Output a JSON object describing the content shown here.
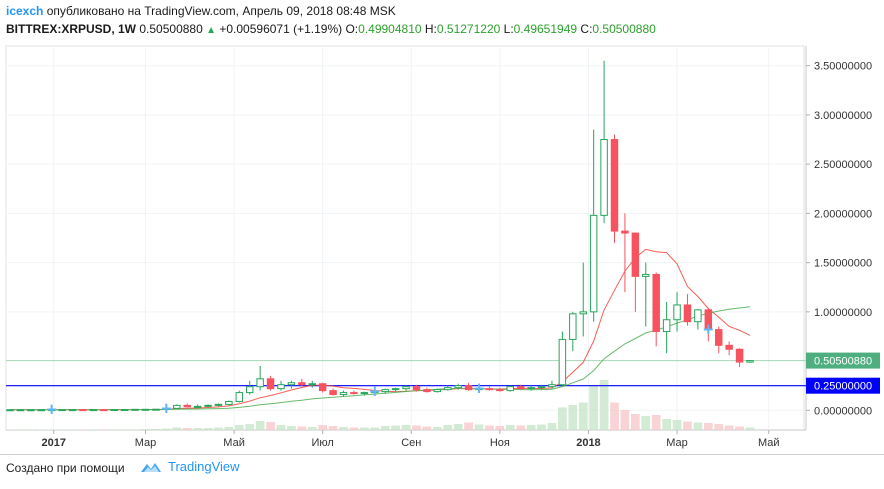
{
  "header": {
    "author": "icexch",
    "published_text": "опубликовано на TradingView.com, Апрель 09, 2018 08:48 MSK",
    "symbol": "BITTREX:XRPUSD, 1W",
    "price": "0.50500880",
    "change": "+0.00596071 (+1.19%)",
    "o_label": "O:",
    "o_value": "0.49904810",
    "h_label": "H:",
    "h_value": "0.51271220",
    "l_label": "L:",
    "l_value": "0.49651949",
    "c_label": "C:",
    "c_value": "0.50500880"
  },
  "footer": {
    "created_with": "Создано при помощи",
    "brand": "TradingView"
  },
  "colors": {
    "up": "#26a65b",
    "down": "#f7525f",
    "ma_fast": "#f44336",
    "ma_slow": "#4caf50",
    "vol_up": "#c8e6c9",
    "vol_down": "#f8c9cc",
    "axis_blue": "#0000ff",
    "price_label": "#4fae7f"
  },
  "chart_data": {
    "type": "candlestick",
    "xlabels": [
      "2017",
      "Мар",
      "Май",
      "Июл",
      "Сен",
      "Ноя",
      "2018",
      "Мар",
      "Май"
    ],
    "ylabels": [
      "3.50000000",
      "3.00000000",
      "2.50000000",
      "2.00000000",
      "1.50000000",
      "1.00000000",
      "0.00000000"
    ],
    "ylim": [
      -0.2,
      3.7
    ],
    "last_price_label": "0.50500880",
    "horizontal_line_label": "0.25000000",
    "horizontal_line_value": 0.25,
    "last_price_value": 0.505,
    "candles": [
      {
        "o": 0.006,
        "h": 0.007,
        "l": 0.005,
        "c": 0.006
      },
      {
        "o": 0.006,
        "h": 0.007,
        "l": 0.005,
        "c": 0.006
      },
      {
        "o": 0.006,
        "h": 0.007,
        "l": 0.005,
        "c": 0.006
      },
      {
        "o": 0.006,
        "h": 0.007,
        "l": 0.005,
        "c": 0.006
      },
      {
        "o": 0.006,
        "h": 0.008,
        "l": 0.005,
        "c": 0.007
      },
      {
        "o": 0.007,
        "h": 0.008,
        "l": 0.006,
        "c": 0.007
      },
      {
        "o": 0.007,
        "h": 0.008,
        "l": 0.006,
        "c": 0.007
      },
      {
        "o": 0.007,
        "h": 0.007,
        "l": 0.006,
        "c": 0.006
      },
      {
        "o": 0.006,
        "h": 0.007,
        "l": 0.006,
        "c": 0.007
      },
      {
        "o": 0.007,
        "h": 0.007,
        "l": 0.006,
        "c": 0.006
      },
      {
        "o": 0.006,
        "h": 0.008,
        "l": 0.006,
        "c": 0.008
      },
      {
        "o": 0.008,
        "h": 0.009,
        "l": 0.007,
        "c": 0.008
      },
      {
        "o": 0.008,
        "h": 0.01,
        "l": 0.007,
        "c": 0.01
      },
      {
        "o": 0.01,
        "h": 0.011,
        "l": 0.009,
        "c": 0.01
      },
      {
        "o": 0.01,
        "h": 0.012,
        "l": 0.009,
        "c": 0.011
      },
      {
        "o": 0.011,
        "h": 0.02,
        "l": 0.01,
        "c": 0.02
      },
      {
        "o": 0.02,
        "h": 0.06,
        "l": 0.02,
        "c": 0.05
      },
      {
        "o": 0.05,
        "h": 0.07,
        "l": 0.03,
        "c": 0.035
      },
      {
        "o": 0.035,
        "h": 0.06,
        "l": 0.03,
        "c": 0.04
      },
      {
        "o": 0.04,
        "h": 0.06,
        "l": 0.03,
        "c": 0.05
      },
      {
        "o": 0.05,
        "h": 0.07,
        "l": 0.04,
        "c": 0.06
      },
      {
        "o": 0.06,
        "h": 0.1,
        "l": 0.05,
        "c": 0.09
      },
      {
        "o": 0.09,
        "h": 0.2,
        "l": 0.08,
        "c": 0.18
      },
      {
        "o": 0.18,
        "h": 0.3,
        "l": 0.16,
        "c": 0.24
      },
      {
        "o": 0.24,
        "h": 0.45,
        "l": 0.2,
        "c": 0.32
      },
      {
        "o": 0.32,
        "h": 0.35,
        "l": 0.2,
        "c": 0.22
      },
      {
        "o": 0.22,
        "h": 0.3,
        "l": 0.2,
        "c": 0.26
      },
      {
        "o": 0.26,
        "h": 0.3,
        "l": 0.22,
        "c": 0.28
      },
      {
        "o": 0.28,
        "h": 0.32,
        "l": 0.24,
        "c": 0.26
      },
      {
        "o": 0.26,
        "h": 0.3,
        "l": 0.23,
        "c": 0.27
      },
      {
        "o": 0.27,
        "h": 0.28,
        "l": 0.18,
        "c": 0.2
      },
      {
        "o": 0.2,
        "h": 0.22,
        "l": 0.15,
        "c": 0.16
      },
      {
        "o": 0.16,
        "h": 0.2,
        "l": 0.14,
        "c": 0.18
      },
      {
        "o": 0.18,
        "h": 0.2,
        "l": 0.16,
        "c": 0.17
      },
      {
        "o": 0.17,
        "h": 0.19,
        "l": 0.15,
        "c": 0.18
      },
      {
        "o": 0.18,
        "h": 0.2,
        "l": 0.16,
        "c": 0.19
      },
      {
        "o": 0.19,
        "h": 0.22,
        "l": 0.17,
        "c": 0.21
      },
      {
        "o": 0.21,
        "h": 0.23,
        "l": 0.19,
        "c": 0.22
      },
      {
        "o": 0.22,
        "h": 0.25,
        "l": 0.2,
        "c": 0.24
      },
      {
        "o": 0.24,
        "h": 0.26,
        "l": 0.19,
        "c": 0.21
      },
      {
        "o": 0.21,
        "h": 0.23,
        "l": 0.18,
        "c": 0.19
      },
      {
        "o": 0.19,
        "h": 0.22,
        "l": 0.18,
        "c": 0.21
      },
      {
        "o": 0.21,
        "h": 0.25,
        "l": 0.2,
        "c": 0.23
      },
      {
        "o": 0.23,
        "h": 0.27,
        "l": 0.21,
        "c": 0.25
      },
      {
        "o": 0.25,
        "h": 0.28,
        "l": 0.2,
        "c": 0.21
      },
      {
        "o": 0.21,
        "h": 0.24,
        "l": 0.19,
        "c": 0.22
      },
      {
        "o": 0.22,
        "h": 0.24,
        "l": 0.2,
        "c": 0.21
      },
      {
        "o": 0.21,
        "h": 0.23,
        "l": 0.19,
        "c": 0.2
      },
      {
        "o": 0.2,
        "h": 0.25,
        "l": 0.19,
        "c": 0.24
      },
      {
        "o": 0.24,
        "h": 0.26,
        "l": 0.21,
        "c": 0.22
      },
      {
        "o": 0.22,
        "h": 0.25,
        "l": 0.2,
        "c": 0.23
      },
      {
        "o": 0.23,
        "h": 0.26,
        "l": 0.21,
        "c": 0.24
      },
      {
        "o": 0.24,
        "h": 0.3,
        "l": 0.22,
        "c": 0.26
      },
      {
        "o": 0.26,
        "h": 0.8,
        "l": 0.24,
        "c": 0.72
      },
      {
        "o": 0.72,
        "h": 1.0,
        "l": 0.6,
        "c": 0.98
      },
      {
        "o": 0.98,
        "h": 1.5,
        "l": 0.75,
        "c": 1.0
      },
      {
        "o": 1.0,
        "h": 2.85,
        "l": 0.9,
        "c": 1.98
      },
      {
        "o": 1.98,
        "h": 3.55,
        "l": 1.9,
        "c": 2.75
      },
      {
        "o": 2.75,
        "h": 2.8,
        "l": 1.7,
        "c": 1.82
      },
      {
        "o": 1.82,
        "h": 2.0,
        "l": 1.2,
        "c": 1.8
      },
      {
        "o": 1.8,
        "h": 1.8,
        "l": 1.0,
        "c": 1.36
      },
      {
        "o": 1.36,
        "h": 1.5,
        "l": 0.85,
        "c": 1.38
      },
      {
        "o": 1.38,
        "h": 1.4,
        "l": 0.65,
        "c": 0.8
      },
      {
        "o": 0.8,
        "h": 1.1,
        "l": 0.58,
        "c": 0.92
      },
      {
        "o": 0.92,
        "h": 1.2,
        "l": 0.8,
        "c": 1.07
      },
      {
        "o": 1.07,
        "h": 1.18,
        "l": 0.86,
        "c": 0.9
      },
      {
        "o": 0.9,
        "h": 1.03,
        "l": 0.82,
        "c": 1.02
      },
      {
        "o": 1.02,
        "h": 1.04,
        "l": 0.7,
        "c": 0.82
      },
      {
        "o": 0.82,
        "h": 0.85,
        "l": 0.58,
        "c": 0.66
      },
      {
        "o": 0.66,
        "h": 0.7,
        "l": 0.56,
        "c": 0.62
      },
      {
        "o": 0.62,
        "h": 0.63,
        "l": 0.44,
        "c": 0.49
      },
      {
        "o": 0.49,
        "h": 0.51,
        "l": 0.48,
        "c": 0.505
      }
    ],
    "volumes": [
      0.01,
      0.01,
      0.01,
      0.01,
      0.01,
      0.01,
      0.01,
      0.01,
      0.01,
      0.01,
      0.01,
      0.01,
      0.01,
      0.02,
      0.02,
      0.03,
      0.05,
      0.04,
      0.04,
      0.04,
      0.05,
      0.06,
      0.1,
      0.12,
      0.18,
      0.16,
      0.1,
      0.08,
      0.07,
      0.06,
      0.1,
      0.08,
      0.06,
      0.05,
      0.05,
      0.05,
      0.08,
      0.09,
      0.1,
      0.09,
      0.07,
      0.06,
      0.1,
      0.12,
      0.15,
      0.11,
      0.09,
      0.08,
      0.1,
      0.09,
      0.1,
      0.11,
      0.14,
      0.45,
      0.5,
      0.55,
      0.9,
      1.0,
      0.55,
      0.4,
      0.32,
      0.28,
      0.3,
      0.22,
      0.2,
      0.17,
      0.15,
      0.14,
      0.12,
      0.09,
      0.07,
      0.05
    ],
    "markers": [
      {
        "label": "+",
        "color": "#64b5f6",
        "index": 4,
        "value": 0.006
      },
      {
        "label": "+",
        "color": "#64b5f6",
        "index": 15,
        "value": 0.02
      },
      {
        "label": "+",
        "color": "#64b5f6",
        "index": 35,
        "value": 0.19
      },
      {
        "label": "+",
        "color": "#64b5f6",
        "index": 45,
        "value": 0.22
      },
      {
        "label": "+",
        "color": "#64b5f6",
        "index": 67,
        "value": 0.82
      }
    ]
  }
}
